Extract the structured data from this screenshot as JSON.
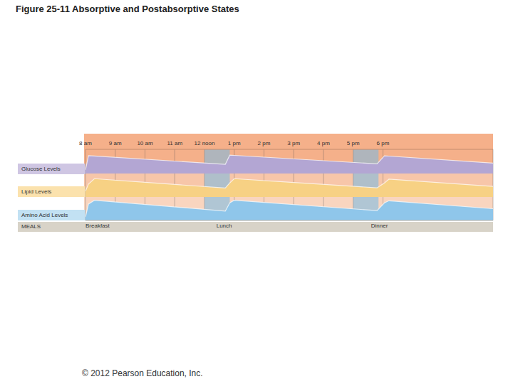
{
  "chart_data": {
    "type": "area",
    "title": "Figure 25-11 Absorptive and Postabsorptive States",
    "x": [
      8,
      8.1,
      8.3,
      12.7,
      12.85,
      13.0,
      17.8,
      18.05,
      18.2,
      21.7
    ],
    "xlim": [
      8,
      21.7
    ],
    "xticks": [
      {
        "value": 8,
        "label": "8 am"
      },
      {
        "value": 9,
        "label": "9 am"
      },
      {
        "value": 10,
        "label": "10 am"
      },
      {
        "value": 11,
        "label": "11 am"
      },
      {
        "value": 12,
        "label": "12 noon"
      },
      {
        "value": 13,
        "label": "1 pm"
      },
      {
        "value": 14,
        "label": "2 pm"
      },
      {
        "value": 15,
        "label": "3 pm"
      },
      {
        "value": 16,
        "label": "4 pm"
      },
      {
        "value": 17,
        "label": "5 pm"
      },
      {
        "value": 18,
        "label": "6 pm"
      }
    ],
    "ylim": [
      0,
      10
    ],
    "tick_labels": "x",
    "grid": true,
    "series": [
      {
        "name": "Glucose Levels",
        "color": "#b3a6d3",
        "values": [
          1.5,
          7.4,
          7.25,
          3.8,
          7.6,
          7.5,
          4.0,
          7.3,
          7.2,
          4.3
        ]
      },
      {
        "name": "Lipid Levels",
        "color": "#f7d184",
        "values": [
          2.5,
          5.5,
          7.8,
          3.8,
          6.0,
          7.8,
          3.9,
          6.0,
          7.6,
          4.5
        ]
      },
      {
        "name": "Amino Acid Levels",
        "color": "#8fc6ea",
        "values": [
          1.5,
          7.0,
          8.6,
          4.0,
          7.5,
          8.6,
          4.2,
          7.5,
          8.4,
          5.0
        ]
      }
    ],
    "absorptive_periods": [
      {
        "x1": 12,
        "x2": 12.85
      },
      {
        "x1": 17,
        "x2": 17.85
      }
    ],
    "meals": {
      "label": "MEALS",
      "items": [
        {
          "x": 8,
          "label": "Breakfast"
        },
        {
          "x": 12.4,
          "label": "Lunch"
        },
        {
          "x": 17.6,
          "label": "Dinner"
        }
      ]
    },
    "footer": "© 2012 Pearson Education, Inc."
  }
}
